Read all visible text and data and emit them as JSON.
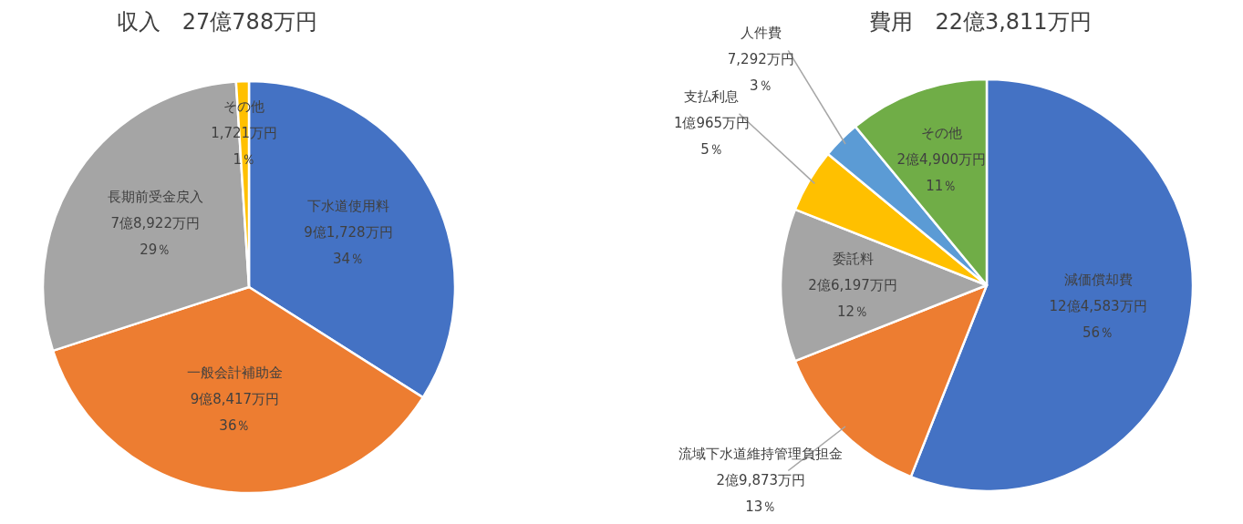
{
  "chart_data": [
    {
      "type": "pie",
      "title": "収入　27億788万円",
      "categories": [
        "下水道使用料",
        "一般会計補助金",
        "長期前受金戻入",
        "その他"
      ],
      "values": [
        34,
        36,
        29,
        1
      ],
      "colors": [
        "#4472c4",
        "#ed7d31",
        "#a5a5a5",
        "#ffc000"
      ],
      "value_labels": [
        "9億1,728万円\n34％",
        "9億8,417万円\n36％",
        "7億8,922万円\n29％",
        "1,721万円\n1％"
      ]
    },
    {
      "type": "pie",
      "title": "費用　22億3,811万円",
      "categories": [
        "減価償却費",
        "流域下水道維持管理負担金",
        "委託料",
        "支払利息",
        "人件費",
        "その他"
      ],
      "values": [
        56,
        13,
        12,
        5,
        3,
        11
      ],
      "colors": [
        "#4472c4",
        "#ed7d31",
        "#a5a5a5",
        "#ffc000",
        "#5b9bd5",
        "#70ad47"
      ],
      "value_labels": [
        "12億4,583万円\n56％",
        "2億9,873万円\n13％",
        "2億6,197万円\n12％",
        "1億965万円\n5％",
        "7,292万円\n3％",
        "2億4,900万円\n11％"
      ]
    }
  ]
}
